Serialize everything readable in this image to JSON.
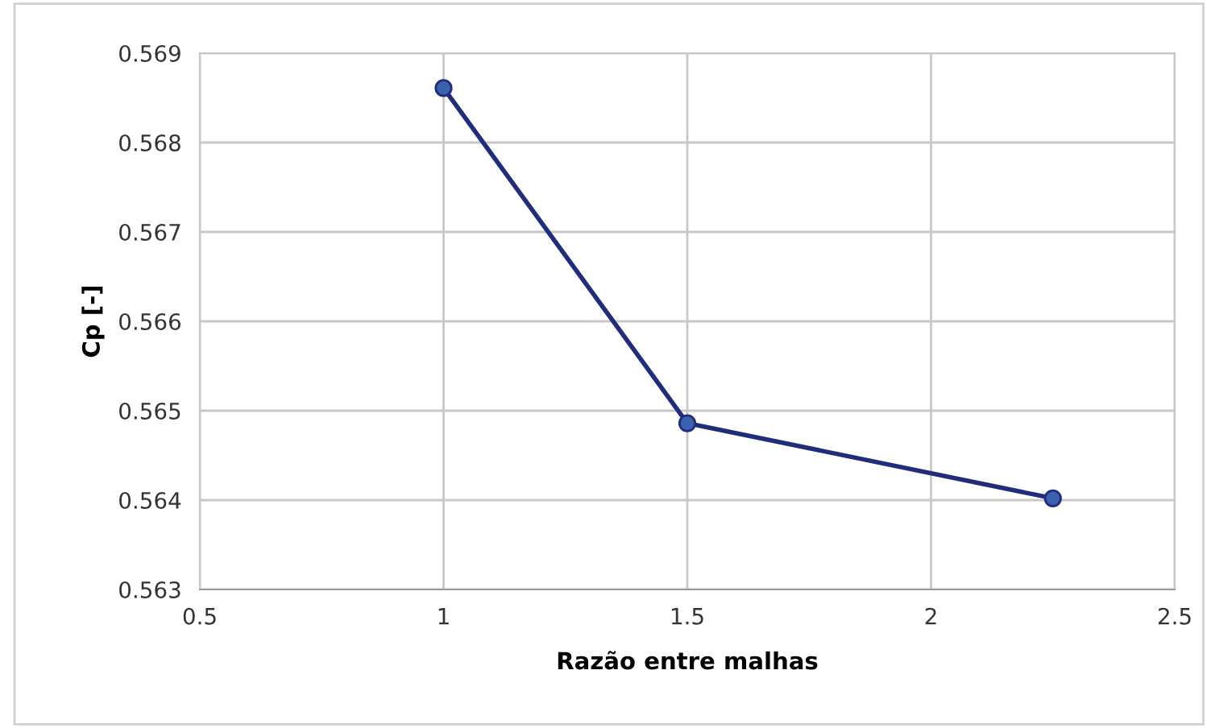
{
  "chart_data": {
    "type": "line",
    "xlabel": "Razão entre malhas",
    "ylabel": "Cp [-]",
    "x": [
      1,
      1.5,
      2.25
    ],
    "series": [
      {
        "color": "#1f2d7a",
        "values": [
          0.56861,
          0.56486,
          0.56402
        ]
      }
    ],
    "xlim": [
      0.5,
      2.5
    ],
    "xticks": [
      0.5,
      1,
      1.5,
      2,
      2.5
    ],
    "ylim": [
      0.563,
      0.569
    ],
    "yticks": [
      0.563,
      0.564,
      0.565,
      0.566,
      0.567,
      0.568,
      0.569
    ],
    "grid": true,
    "marker": "circle",
    "line_style": "solid"
  }
}
